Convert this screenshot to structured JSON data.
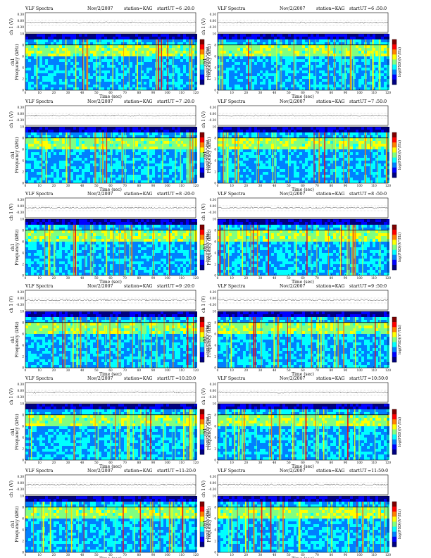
{
  "shared": {
    "title": "VLF Spectra",
    "date": "Nov/2/2007",
    "station": "station=KAG",
    "start_prefix": "start",
    "ut_prefix": "UT",
    "xlabel": "Time (sec)",
    "ylabel_top": "ch1",
    "ylabel_bottom": "Frequency (kHz)",
    "amp_label": "ch 1 (V)",
    "cbar_label": "log(PSD)(V²/Hz)",
    "x_ticks": [
      "0",
      "10",
      "20",
      "30",
      "40",
      "50",
      "60",
      "70",
      "80",
      "90",
      "100",
      "110",
      "120"
    ],
    "y_ticks": [
      "0",
      "2",
      "4",
      "6",
      "8",
      "10"
    ],
    "amp_ticks": [
      "0.30",
      "0.00",
      "-0.30"
    ]
  },
  "chart_data": [
    {
      "type": "heatmap",
      "panel": "r1-left",
      "start_ut": "=6 :20:0",
      "xlim": [
        0,
        120
      ],
      "ylim": [
        0,
        10
      ],
      "x_unit": "sec",
      "y_unit": "kHz"
    },
    {
      "type": "heatmap",
      "panel": "r1-right",
      "start_ut": "=6 :50:0",
      "xlim": [
        0,
        120
      ],
      "ylim": [
        0,
        10
      ],
      "x_unit": "sec",
      "y_unit": "kHz"
    },
    {
      "type": "heatmap",
      "panel": "r2-left",
      "start_ut": "=7 :20:0",
      "xlim": [
        0,
        120
      ],
      "ylim": [
        0,
        10
      ],
      "x_unit": "sec",
      "y_unit": "kHz"
    },
    {
      "type": "heatmap",
      "panel": "r2-right",
      "start_ut": "=7 :50:0",
      "xlim": [
        0,
        120
      ],
      "ylim": [
        0,
        10
      ],
      "x_unit": "sec",
      "y_unit": "kHz"
    },
    {
      "type": "heatmap",
      "panel": "r3-left",
      "start_ut": "=8 :20:0",
      "xlim": [
        0,
        120
      ],
      "ylim": [
        0,
        10
      ],
      "x_unit": "sec",
      "y_unit": "kHz"
    },
    {
      "type": "heatmap",
      "panel": "r3-right",
      "start_ut": "=8 :50:0",
      "xlim": [
        0,
        120
      ],
      "ylim": [
        0,
        10
      ],
      "x_unit": "sec",
      "y_unit": "kHz"
    },
    {
      "type": "heatmap",
      "panel": "r4-left",
      "start_ut": "=9 :20:0",
      "xlim": [
        0,
        120
      ],
      "ylim": [
        0,
        10
      ],
      "x_unit": "sec",
      "y_unit": "kHz"
    },
    {
      "type": "heatmap",
      "panel": "r4-right",
      "start_ut": "=9 :50:0",
      "xlim": [
        0,
        120
      ],
      "ylim": [
        0,
        10
      ],
      "x_unit": "sec",
      "y_unit": "kHz"
    },
    {
      "type": "heatmap",
      "panel": "r5-left",
      "start_ut": "=10:20:0",
      "xlim": [
        0,
        120
      ],
      "ylim": [
        0,
        10
      ],
      "x_unit": "sec",
      "y_unit": "kHz"
    },
    {
      "type": "heatmap",
      "panel": "r5-right",
      "start_ut": "=10:50:0",
      "xlim": [
        0,
        120
      ],
      "ylim": [
        0,
        10
      ],
      "x_unit": "sec",
      "y_unit": "kHz"
    },
    {
      "type": "heatmap",
      "panel": "r6-left",
      "start_ut": "=11:20:0",
      "xlim": [
        0,
        120
      ],
      "ylim": [
        0,
        10
      ],
      "x_unit": "sec",
      "y_unit": "kHz"
    },
    {
      "type": "heatmap",
      "panel": "r6-right",
      "start_ut": "=11:50:0",
      "xlim": [
        0,
        120
      ],
      "ylim": [
        0,
        10
      ],
      "x_unit": "sec",
      "y_unit": "kHz"
    }
  ],
  "colors": {
    "colormap": [
      "#000080",
      "#0000ff",
      "#0080ff",
      "#00ffff",
      "#80ff80",
      "#ffff00",
      "#ff8000",
      "#ff0000",
      "#800000"
    ],
    "spectrogram_base": "#0a6cff"
  }
}
